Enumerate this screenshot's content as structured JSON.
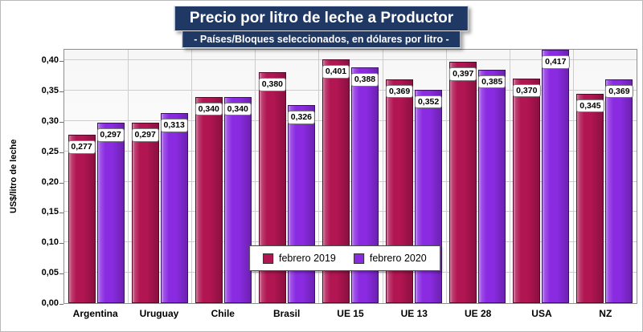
{
  "title": "Precio por litro de leche a Productor",
  "subtitle": "- Países/Bloques seleccionados, en dólares por litro -",
  "colors": {
    "title_bg": "#1F3864",
    "series_2019": "#B11552",
    "series_2019_border": "#55082A",
    "series_2020": "#8A2BE2",
    "series_2020_border": "#3D1166",
    "grid": "#cdcdcd"
  },
  "chart_data": {
    "type": "bar",
    "title": "Precio por litro de leche a Productor",
    "subtitle": "- Países/Bloques seleccionados, en dólares por litro -",
    "xlabel": "",
    "ylabel": "US$/litro de leche",
    "ylim": [
      0,
      0.42
    ],
    "y_tick_step": 0.05,
    "y_tick_max": 0.4,
    "decimal_separator": ",",
    "grid": true,
    "legend_position": "bottom-center-inside",
    "categories": [
      "Argentina",
      "Uruguay",
      "Chile",
      "Brasil",
      "UE 15",
      "UE 13",
      "UE 28",
      "USA",
      "NZ"
    ],
    "series": [
      {
        "name": "febrero 2019",
        "color": "#B11552",
        "border_color": "#55082A",
        "values": [
          0.277,
          0.297,
          0.34,
          0.38,
          0.401,
          0.369,
          0.397,
          0.37,
          0.345
        ]
      },
      {
        "name": "febrero 2020",
        "color": "#8A2BE2",
        "border_color": "#3D1166",
        "values": [
          0.297,
          0.313,
          0.34,
          0.326,
          0.388,
          0.352,
          0.385,
          0.417,
          0.369
        ]
      }
    ]
  }
}
